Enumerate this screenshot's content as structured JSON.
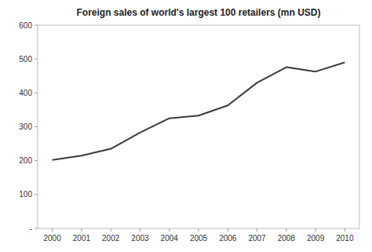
{
  "chart_data": {
    "type": "line",
    "title": "Foreign sales of world's largest 100 retailers (mn USD)",
    "x": [
      2000,
      2001,
      2002,
      2003,
      2004,
      2005,
      2006,
      2007,
      2008,
      2009,
      2010
    ],
    "values": [
      202,
      215,
      235,
      283,
      325,
      333,
      363,
      430,
      476,
      463,
      490
    ],
    "color": "#3a3a3a",
    "xlim": [
      1999.5,
      2010.5
    ],
    "xticks": [
      2000,
      2001,
      2002,
      2003,
      2004,
      2005,
      2006,
      2007,
      2008,
      2009,
      2010
    ],
    "ylim": [
      0,
      600
    ],
    "yticks": [
      {
        "value": 0,
        "label": "-"
      },
      100,
      200,
      300,
      400,
      500,
      600
    ],
    "grid": false
  }
}
